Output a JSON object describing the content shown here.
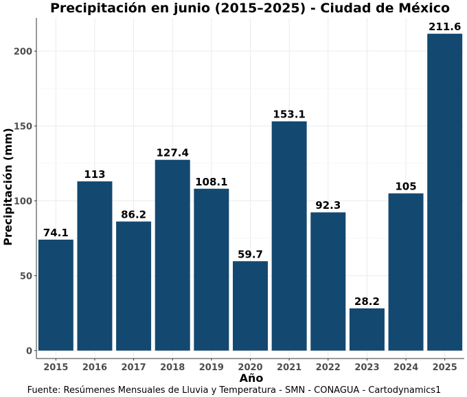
{
  "chart_data": {
    "type": "bar",
    "title": "Precipitación en junio (2015–2025) - Ciudad de México",
    "xlabel": "Año",
    "ylabel": "Precipitación (mm)",
    "caption": "Fuente: Resúmenes Mensuales de Lluvia y Temperatura - SMN - CONAGUA - Cartodynamics1",
    "categories": [
      "2015",
      "2016",
      "2017",
      "2018",
      "2019",
      "2020",
      "2021",
      "2022",
      "2023",
      "2024",
      "2025"
    ],
    "values": [
      74.1,
      113,
      86.2,
      127.4,
      108.1,
      59.7,
      153.1,
      92.3,
      28.2,
      105,
      211.6
    ],
    "data_labels": [
      "74.1",
      "113",
      "86.2",
      "127.4",
      "108.1",
      "59.7",
      "153.1",
      "92.3",
      "28.2",
      "105",
      "211.6"
    ],
    "yticks": [
      0,
      50,
      100,
      150,
      200
    ],
    "ylim": [
      -5.3,
      222.2
    ],
    "grid": true,
    "bar_color": "#134870"
  }
}
